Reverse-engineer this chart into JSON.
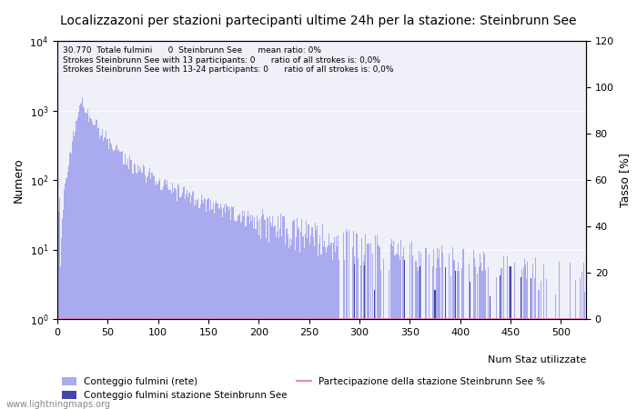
{
  "title": "Localizzazoni per stazioni partecipanti ultime 24h per la stazione: Steinbrunn See",
  "ylabel_left": "Numero",
  "ylabel_right": "Tasso [%]",
  "xlabel": "Num Staz utilizzate",
  "annotation_line1": "30.770  Totale fulmini      0  Steinbrunn See      mean ratio: 0%",
  "annotation_line2": "Strokes Steinbrunn See with 13 participants: 0      ratio of all strokes is: 0,0%",
  "annotation_line3": "Strokes Steinbrunn See with 13-24 participants: 0      ratio of all strokes is: 0,0%",
  "watermark": "www.lightningmaps.org",
  "bar_color_light": "#aaaaee",
  "bar_color_dark": "#4444aa",
  "line_color": "#ee88bb",
  "legend_label_light": "Conteggio fulmini (rete)",
  "legend_label_dark": "Conteggio fulmini stazione Steinbrunn See",
  "legend_label_line": "Partecipazione della stazione Steinbrunn See %",
  "xlim": [
    0,
    525
  ],
  "ylim_right": [
    0,
    120
  ],
  "bg_color": "#f0f0f8"
}
